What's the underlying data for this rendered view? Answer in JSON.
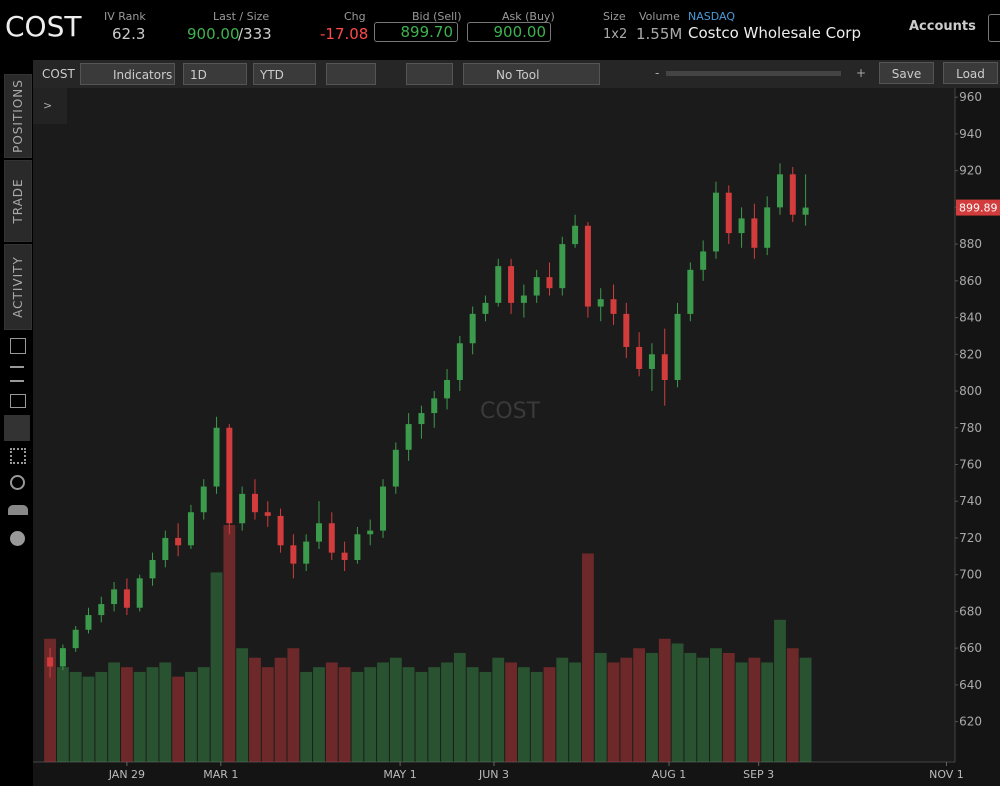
{
  "header": {
    "symbol": "COST",
    "iv_rank_label": "IV Rank",
    "iv_rank": "62.3",
    "last_size_label": "Last / Size",
    "last": "900.00",
    "size": "/333",
    "chg_label": "Chg",
    "chg": "-17.08",
    "bid_label": "Bid (Sell)",
    "bid": "899.70",
    "ask_label": "Ask (Buy)",
    "ask": "900.00",
    "size2_label": "Size",
    "size2": "1x2",
    "volume_label": "Volume",
    "volume": "1.55M",
    "exchange": "NASDAQ",
    "company": "Costco Wholesale Corp",
    "accounts": "Accounts"
  },
  "toolbar": {
    "symbol": "COST",
    "indicators": "Indicators",
    "aggregation": "1D",
    "range": "YTD",
    "tool": "No Tool",
    "zoom_out": "-",
    "zoom_in": "+",
    "save": "Save",
    "load": "Load",
    "expand": ">"
  },
  "sidebar": {
    "tabs": [
      "POSITIONS",
      "TRADE",
      "ACTIVITY"
    ]
  },
  "chart_data": {
    "type": "candlestick",
    "watermark": "COST",
    "x": [
      0,
      3,
      6,
      9,
      12,
      15,
      18,
      21,
      24,
      27,
      30,
      33,
      36,
      39,
      42,
      45,
      48,
      51,
      54,
      57,
      60,
      63,
      66,
      69,
      72,
      75,
      78,
      81,
      84,
      87,
      90,
      93,
      96,
      99,
      102,
      105,
      108,
      111,
      114,
      117,
      120,
      123,
      126,
      129,
      132,
      135,
      138,
      141,
      144,
      147,
      150,
      153,
      156,
      159,
      162,
      165,
      168,
      171,
      174,
      177
    ],
    "open": [
      655,
      650,
      660,
      670,
      678,
      684,
      692,
      682,
      698,
      708,
      720,
      716,
      734,
      748,
      780,
      728,
      744,
      734,
      732,
      716,
      706,
      718,
      728,
      712,
      708,
      722,
      724,
      748,
      768,
      782,
      788,
      796,
      806,
      826,
      842,
      848,
      868,
      848,
      852,
      862,
      856,
      880,
      890,
      846,
      850,
      842,
      824,
      812,
      820,
      806,
      842,
      866,
      876,
      908,
      886,
      894,
      878,
      900,
      918,
      896
    ],
    "high": [
      660,
      662,
      672,
      682,
      688,
      696,
      698,
      700,
      712,
      724,
      728,
      738,
      752,
      786,
      782,
      748,
      752,
      740,
      736,
      722,
      722,
      740,
      734,
      718,
      726,
      730,
      752,
      772,
      788,
      792,
      800,
      812,
      830,
      846,
      852,
      872,
      872,
      858,
      866,
      870,
      884,
      896,
      892,
      856,
      858,
      848,
      832,
      826,
      834,
      848,
      870,
      882,
      914,
      912,
      900,
      902,
      906,
      924,
      922,
      918
    ],
    "low": [
      644,
      648,
      658,
      668,
      674,
      680,
      678,
      680,
      694,
      704,
      710,
      714,
      730,
      744,
      722,
      724,
      730,
      726,
      712,
      698,
      702,
      714,
      708,
      702,
      706,
      716,
      720,
      744,
      762,
      774,
      780,
      790,
      800,
      820,
      838,
      846,
      842,
      840,
      848,
      852,
      852,
      878,
      840,
      838,
      836,
      818,
      808,
      800,
      792,
      802,
      838,
      860,
      872,
      880,
      878,
      872,
      874,
      896,
      892,
      890
    ],
    "close": [
      650,
      660,
      670,
      678,
      684,
      692,
      682,
      698,
      708,
      720,
      716,
      734,
      748,
      780,
      728,
      744,
      734,
      732,
      716,
      706,
      718,
      728,
      712,
      708,
      722,
      724,
      748,
      768,
      782,
      788,
      796,
      806,
      826,
      842,
      848,
      868,
      848,
      852,
      862,
      856,
      880,
      890,
      846,
      850,
      842,
      824,
      812,
      820,
      806,
      842,
      866,
      876,
      908,
      886,
      894,
      878,
      900,
      918,
      896,
      899.89
    ],
    "volume": [
      2.6,
      2.0,
      1.9,
      1.8,
      1.9,
      2.1,
      2.0,
      1.9,
      2.0,
      2.1,
      1.8,
      1.9,
      2.0,
      4.0,
      5.0,
      2.4,
      2.2,
      2.0,
      2.2,
      2.4,
      1.9,
      2.0,
      2.1,
      2.0,
      1.9,
      2.0,
      2.1,
      2.2,
      2.0,
      1.9,
      2.0,
      2.1,
      2.3,
      2.0,
      1.9,
      2.2,
      2.1,
      2.0,
      1.9,
      2.0,
      2.2,
      2.1,
      4.4,
      2.3,
      2.1,
      2.2,
      2.4,
      2.3,
      2.6,
      2.5,
      2.3,
      2.2,
      2.4,
      2.3,
      2.1,
      2.2,
      2.1,
      3.0,
      2.4,
      2.2
    ],
    "up_color": "#3c9a4c",
    "down_color": "#d23c3c",
    "xlim": [
      -4,
      212
    ],
    "ylim": [
      598,
      965
    ],
    "xticks": [
      {
        "value": 18,
        "label": "JAN 29"
      },
      {
        "value": 40,
        "label": "MAR 1"
      },
      {
        "value": 82,
        "label": "MAY 1"
      },
      {
        "value": 104,
        "label": "JUN 3"
      },
      {
        "value": 145,
        "label": "AUG 1"
      },
      {
        "value": 166,
        "label": "SEP 3"
      },
      {
        "value": 210,
        "label": "NOV 1"
      }
    ],
    "yticks": [
      620,
      640,
      660,
      680,
      700,
      720,
      740,
      760,
      780,
      800,
      820,
      840,
      860,
      880,
      900,
      920,
      940,
      960
    ],
    "grid": false
  }
}
